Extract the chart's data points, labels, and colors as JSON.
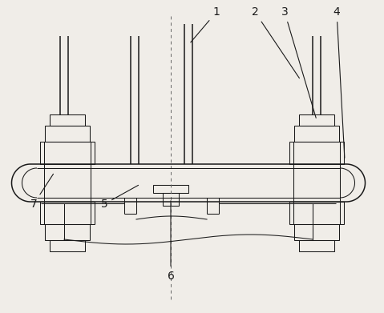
{
  "bg_color": "#f0ede8",
  "line_color": "#1a1a1a",
  "lw": 1.1,
  "tlw": 0.75,
  "fig_width": 4.79,
  "fig_height": 3.91,
  "label_fontsize": 10
}
